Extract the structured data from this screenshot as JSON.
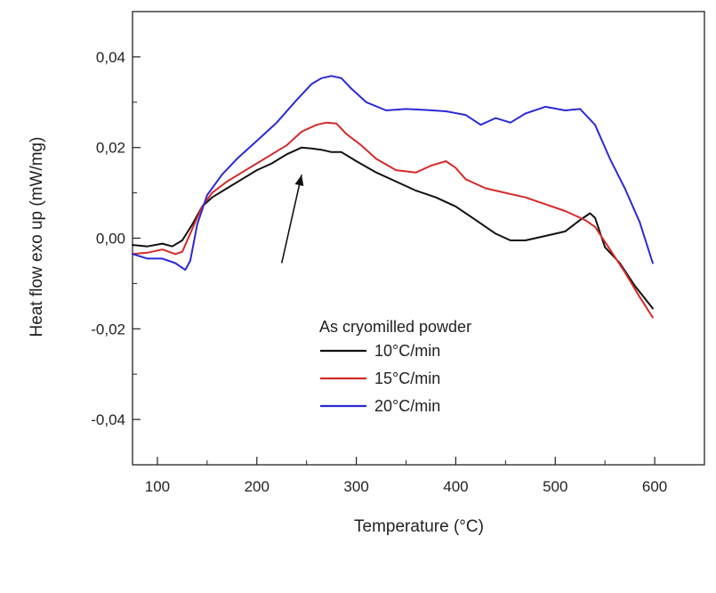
{
  "chart_data": {
    "type": "line",
    "title": "",
    "xlabel": "Temperature (°C)",
    "ylabel": "Heat flow exo up (mW/mg)",
    "xlim": [
      75,
      650
    ],
    "ylim": [
      -0.05,
      0.05
    ],
    "xticks": [
      100,
      200,
      300,
      400,
      500,
      600
    ],
    "yticks": [
      -0.04,
      -0.02,
      0.0,
      0.02,
      0.04
    ],
    "xtick_labels": [
      "100",
      "200",
      "300",
      "400",
      "500",
      "600"
    ],
    "ytick_labels": [
      "-0,04",
      "-0,02",
      "0,00",
      "0,02",
      "0,04"
    ],
    "grid": false,
    "legend": {
      "title": "As cryomilled powder",
      "placement": "center-bottom"
    },
    "series": [
      {
        "name": "10°C/min",
        "color": "#111111",
        "x": [
          75,
          90,
          105,
          115,
          125,
          135,
          145,
          155,
          170,
          185,
          200,
          215,
          230,
          245,
          255,
          265,
          275,
          285,
          300,
          320,
          340,
          360,
          380,
          400,
          420,
          440,
          455,
          470,
          490,
          510,
          525,
          535,
          540,
          550,
          565,
          580,
          598
        ],
        "y": [
          -0.0015,
          -0.0018,
          -0.0012,
          -0.0018,
          -0.0005,
          0.003,
          0.007,
          0.009,
          0.011,
          0.013,
          0.015,
          0.0165,
          0.0185,
          0.02,
          0.0198,
          0.0195,
          0.019,
          0.019,
          0.017,
          0.0145,
          0.0125,
          0.0105,
          0.009,
          0.007,
          0.004,
          0.001,
          -0.0005,
          -0.0005,
          0.0005,
          0.0015,
          0.004,
          0.0055,
          0.0045,
          -0.002,
          -0.0055,
          -0.0105,
          -0.0155
        ]
      },
      {
        "name": "15°C/min",
        "color": "#d42a2a",
        "x": [
          75,
          90,
          105,
          118,
          125,
          135,
          145,
          155,
          170,
          185,
          200,
          215,
          230,
          245,
          260,
          270,
          280,
          290,
          305,
          320,
          340,
          360,
          375,
          390,
          400,
          410,
          430,
          450,
          470,
          490,
          510,
          530,
          540,
          555,
          570,
          585,
          598
        ],
        "y": [
          -0.0035,
          -0.0032,
          -0.0025,
          -0.0035,
          -0.003,
          0.002,
          0.007,
          0.01,
          0.0125,
          0.0145,
          0.0165,
          0.0185,
          0.0205,
          0.0235,
          0.025,
          0.0255,
          0.0253,
          0.023,
          0.0205,
          0.0175,
          0.015,
          0.0145,
          0.016,
          0.017,
          0.0155,
          0.013,
          0.011,
          0.01,
          0.009,
          0.0075,
          0.006,
          0.004,
          0.0025,
          -0.0025,
          -0.0075,
          -0.013,
          -0.0175
        ]
      },
      {
        "name": "20°C/min",
        "color": "#2a2ad4",
        "x": [
          75,
          90,
          105,
          118,
          128,
          133,
          140,
          150,
          165,
          180,
          200,
          220,
          240,
          255,
          265,
          275,
          285,
          295,
          310,
          330,
          350,
          370,
          390,
          410,
          425,
          440,
          455,
          470,
          490,
          510,
          525,
          540,
          555,
          570,
          585,
          598
        ],
        "y": [
          -0.0035,
          -0.0045,
          -0.0045,
          -0.0055,
          -0.007,
          -0.005,
          0.003,
          0.0095,
          0.014,
          0.0175,
          0.0215,
          0.0255,
          0.0305,
          0.034,
          0.0353,
          0.0358,
          0.0353,
          0.033,
          0.03,
          0.0282,
          0.0285,
          0.0283,
          0.028,
          0.0272,
          0.025,
          0.0265,
          0.0255,
          0.0275,
          0.029,
          0.0282,
          0.0285,
          0.025,
          0.0175,
          0.011,
          0.0035,
          -0.0055
        ]
      }
    ],
    "annotations": [
      {
        "type": "arrow",
        "from": [
          225,
          -0.0055
        ],
        "to": [
          245,
          0.014
        ]
      }
    ]
  }
}
